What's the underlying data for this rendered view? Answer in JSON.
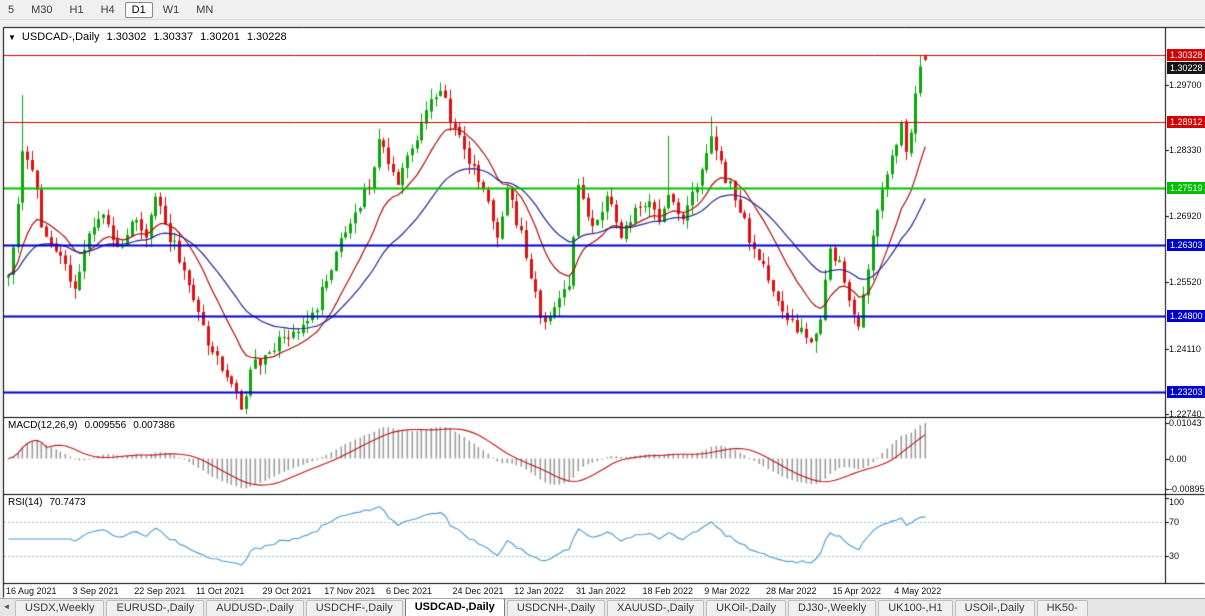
{
  "icons": {
    "chart_menu": "▼",
    "tabs_scroll_left": "◄"
  },
  "toolbar": {
    "timeframes": [
      "5",
      "M30",
      "H1",
      "H4",
      "D1",
      "W1",
      "MN"
    ],
    "selected": "D1"
  },
  "chart": {
    "symbol_label": "USDCAD-,Daily",
    "ohlc": {
      "open": "1.30302",
      "high": "1.30337",
      "low": "1.30201",
      "close": "1.30228"
    },
    "current_price": "1.30228",
    "y_axis_ticks": [
      "1.29700",
      "1.28330",
      "1.26920",
      "1.25520",
      "1.24110",
      "1.22740"
    ],
    "hlines": [
      {
        "price": "1.30328",
        "value": 1.30328,
        "color": "#d40000",
        "width": 1
      },
      {
        "price": "1.28912",
        "value": 1.28912,
        "color": "#d40000",
        "width": 1
      },
      {
        "price": "1.27519",
        "value": 1.27519,
        "color": "#00c000",
        "width": 2
      },
      {
        "price": "1.26303",
        "value": 1.26303,
        "color": "#0000cc",
        "width": 2
      },
      {
        "price": "1.24800",
        "value": 1.248,
        "color": "#0000cc",
        "width": 2
      },
      {
        "price": "1.23203",
        "value": 1.23203,
        "color": "#0000cc",
        "width": 2
      }
    ],
    "x_axis_labels": [
      "16 Aug 2021",
      "3 Sep 2021",
      "22 Sep 2021",
      "11 Oct 2021",
      "29 Oct 2021",
      "17 Nov 2021",
      "6 Dec 2021",
      "24 Dec 2021",
      "12 Jan 2022",
      "31 Jan 2022",
      "18 Feb 2022",
      "9 Mar 2022",
      "28 Mar 2022",
      "15 Apr 2022",
      "4 May 2022"
    ]
  },
  "macd": {
    "label": "MACD(12,26,9)",
    "value_main": "0.009556",
    "value_signal": "0.007386",
    "axis_ticks": [
      {
        "text": "0.01043",
        "value": 0.01043
      },
      {
        "text": "0.00",
        "value": 0
      },
      {
        "text": "-0.00895",
        "value": -0.00895
      }
    ]
  },
  "rsi": {
    "label": "RSI(14)",
    "value": "70.7473",
    "axis_ticks": [
      {
        "text": "100",
        "value": 100
      },
      {
        "text": "70",
        "value": 70
      },
      {
        "text": "30",
        "value": 30
      }
    ],
    "levels": [
      70,
      30
    ]
  },
  "tabs": {
    "items": [
      "USDX,Weekly",
      "EURUSD-,Daily",
      "AUDUSD-,Daily",
      "USDCHF-,Daily",
      "USDCAD-,Daily",
      "USDCNH-,Daily",
      "XAUUSD-,Daily",
      "UKOil-,Daily",
      "DJ30-,Weekly",
      "UK100-,H1",
      "USOil-,Daily",
      "HK50-"
    ],
    "active": "USDCAD-,Daily"
  },
  "chart_data": {
    "type": "candlestick",
    "symbol": "USDCAD",
    "timeframe": "Daily",
    "bars": 194,
    "visible_price_range": [
      1.22675,
      1.3092
    ],
    "close_anchors": [
      [
        0,
        1.2575
      ],
      [
        1,
        1.262
      ],
      [
        3,
        1.2835
      ],
      [
        5,
        1.278
      ],
      [
        8,
        1.264
      ],
      [
        11,
        1.2608
      ],
      [
        14,
        1.2535
      ],
      [
        17,
        1.2645
      ],
      [
        20,
        1.269
      ],
      [
        23,
        1.2625
      ],
      [
        27,
        1.2692
      ],
      [
        29,
        1.265
      ],
      [
        31,
        1.2722
      ],
      [
        34,
        1.265
      ],
      [
        37,
        1.258
      ],
      [
        40,
        1.2495
      ],
      [
        43,
        1.2405
      ],
      [
        46,
        1.2348
      ],
      [
        49,
        1.2295
      ],
      [
        52,
        1.2378
      ],
      [
        54,
        1.2392
      ],
      [
        58,
        1.243
      ],
      [
        62,
        1.2455
      ],
      [
        65,
        1.2505
      ],
      [
        67,
        1.256
      ],
      [
        70,
        1.264
      ],
      [
        73,
        1.2692
      ],
      [
        76,
        1.276
      ],
      [
        78,
        1.2855
      ],
      [
        82,
        1.2762
      ],
      [
        85,
        1.284
      ],
      [
        88,
        1.292
      ],
      [
        91,
        1.2958
      ],
      [
        94,
        1.288
      ],
      [
        97,
        1.2802
      ],
      [
        100,
        1.2755
      ],
      [
        103,
        1.2645
      ],
      [
        105,
        1.2742
      ],
      [
        108,
        1.2655
      ],
      [
        110,
        1.256
      ],
      [
        113,
        1.2455
      ],
      [
        116,
        1.2515
      ],
      [
        118,
        1.2552
      ],
      [
        120,
        1.2762
      ],
      [
        123,
        1.2672
      ],
      [
        126,
        1.2722
      ],
      [
        129,
        1.2655
      ],
      [
        132,
        1.2702
      ],
      [
        134,
        1.2722
      ],
      [
        137,
        1.269
      ],
      [
        139,
        1.2725
      ],
      [
        142,
        1.2695
      ],
      [
        145,
        1.2748
      ],
      [
        148,
        1.2868
      ],
      [
        151,
        1.2772
      ],
      [
        154,
        1.2702
      ],
      [
        157,
        1.2622
      ],
      [
        160,
        1.2562
      ],
      [
        163,
        1.2492
      ],
      [
        166,
        1.2452
      ],
      [
        169,
        1.2418
      ],
      [
        171,
        1.2472
      ],
      [
        173,
        1.2625
      ],
      [
        175,
        1.2592
      ],
      [
        177,
        1.2525
      ],
      [
        179,
        1.2462
      ],
      [
        181,
        1.2568
      ],
      [
        183,
        1.2712
      ],
      [
        185,
        1.2788
      ],
      [
        186,
        1.2822
      ],
      [
        187,
        1.2855
      ],
      [
        188,
        1.289
      ],
      [
        189,
        1.2818
      ],
      [
        190,
        1.2872
      ],
      [
        191,
        1.2948
      ],
      [
        192,
        1.3018
      ],
      [
        193,
        1.30228
      ]
    ],
    "wick_highs": [
      [
        3,
        1.2948
      ],
      [
        139,
        1.2862
      ],
      [
        148,
        1.2903
      ],
      [
        192,
        1.3032
      ]
    ],
    "wick_lows": [
      [
        49,
        1.2288
      ],
      [
        113,
        1.2452
      ],
      [
        170,
        1.2403
      ]
    ],
    "last_bar": {
      "open": 1.30302,
      "high": 1.30337,
      "low": 1.30201,
      "close": 1.30228
    },
    "date_label_bars": [
      0,
      14,
      27,
      40,
      54,
      67,
      80,
      94,
      107,
      120,
      134,
      147,
      160,
      174,
      187
    ],
    "ma_fast_period": 13,
    "ma_slow_period": 30,
    "macd_params": [
      12,
      26,
      9
    ],
    "rsi_period": 14,
    "colors": {
      "candle_up": "#0da50d",
      "candle_down": "#dc1212",
      "ma_fast": "#b01010",
      "ma_slow": "#26269a",
      "macd_hist": "#9e9e9e",
      "macd_signal": "#c01818",
      "rsi_line": "#4f9bd5",
      "rsi_level": "#a9c4da",
      "current_tag_bg": "#151515"
    }
  }
}
